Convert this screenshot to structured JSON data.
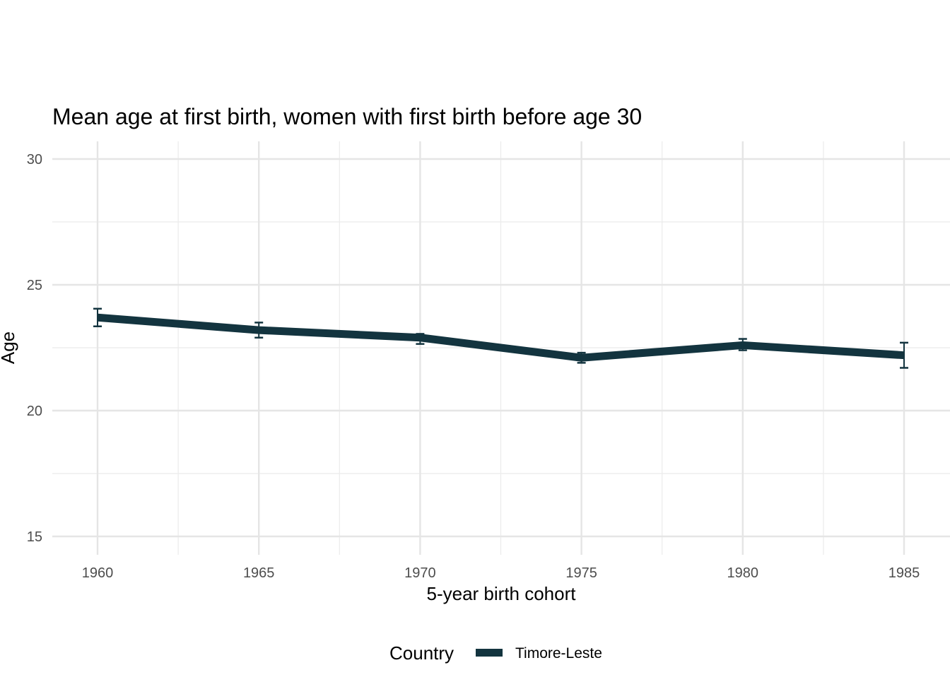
{
  "chart_data": {
    "type": "line",
    "title": "Mean age at first birth, women with first birth before age 30",
    "xlabel": "5-year birth cohort",
    "ylabel": "Age",
    "xlim": [
      1958.6,
      1987.2
    ],
    "ylim": [
      14.3,
      30.7
    ],
    "x_ticks": [
      1960,
      1965,
      1970,
      1975,
      1980,
      1985
    ],
    "y_ticks": [
      15,
      20,
      25,
      30
    ],
    "grid": true,
    "legend": {
      "title": "Country",
      "placement": "bottom"
    },
    "series": [
      {
        "name": "Timore-Leste",
        "color": "#13343f",
        "x": [
          1960,
          1965,
          1970,
          1975,
          1980,
          1985
        ],
        "y": [
          23.7,
          23.2,
          22.9,
          22.1,
          22.6,
          22.2
        ],
        "ymin": [
          23.35,
          22.9,
          22.65,
          21.9,
          22.4,
          21.7
        ],
        "ymax": [
          24.05,
          23.5,
          23.05,
          22.3,
          22.85,
          22.7
        ]
      }
    ]
  }
}
